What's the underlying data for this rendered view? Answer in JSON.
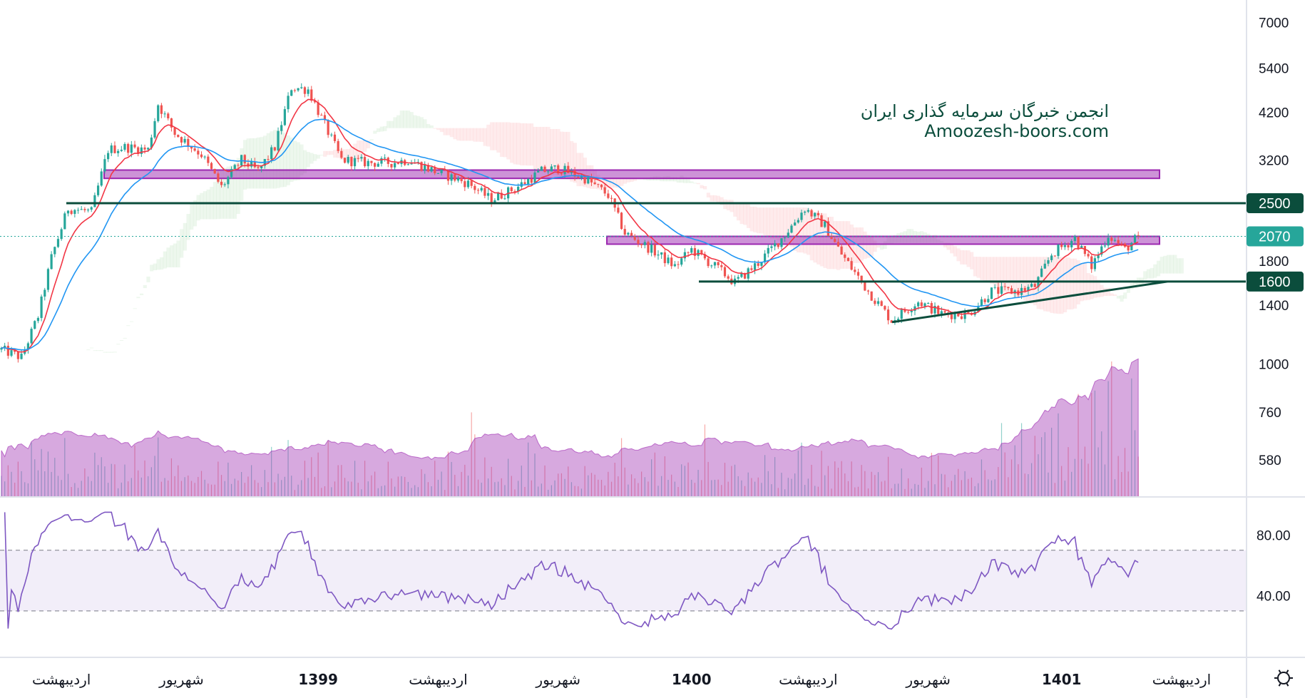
{
  "watermark": {
    "line1": "انجمن خبرگان سرمایه گذاری ایران",
    "line2": "Amoozesh-boors.com"
  },
  "colors": {
    "up": "#26a69a",
    "down": "#ef5350",
    "ema_fast": "#f23645",
    "ema_slow": "#2196f3",
    "zone": "#9c27b0",
    "level_line": "#0b4d3c",
    "last_price": "#26a69a",
    "rsi": "#7e57c2",
    "volume_ma": "#9c27b0"
  },
  "chart_data": {
    "type": "candlestick",
    "price_scale": "log",
    "ylim": [
      500,
      7500
    ],
    "price_ticks": [
      "7000",
      "5400",
      "4200",
      "3200",
      "1800",
      "1400",
      "1000",
      "760",
      "580"
    ],
    "price_tick_values": [
      7000,
      5400,
      4200,
      3200,
      1800,
      1400,
      1000,
      760,
      580
    ],
    "close_path": [
      [
        0,
        1086
      ],
      [
        6,
        1038
      ],
      [
        11,
        1315
      ],
      [
        15,
        1832
      ],
      [
        20,
        2432
      ],
      [
        27,
        2380
      ],
      [
        32,
        3390
      ],
      [
        37,
        3440
      ],
      [
        44,
        3390
      ],
      [
        47,
        4400
      ],
      [
        52,
        3726
      ],
      [
        60,
        3300
      ],
      [
        66,
        2740
      ],
      [
        72,
        3200
      ],
      [
        77,
        3000
      ],
      [
        82,
        3440
      ],
      [
        87,
        4840
      ],
      [
        92,
        4780
      ],
      [
        97,
        3900
      ],
      [
        102,
        3200
      ],
      [
        110,
        3150
      ],
      [
        117,
        3150
      ],
      [
        122,
        3200
      ],
      [
        130,
        3000
      ],
      [
        140,
        2800
      ],
      [
        147,
        2550
      ],
      [
        155,
        2750
      ],
      [
        162,
        3000
      ],
      [
        167,
        3050
      ],
      [
        175,
        2880
      ],
      [
        182,
        2620
      ],
      [
        187,
        2110
      ],
      [
        195,
        1920
      ],
      [
        202,
        1745
      ],
      [
        207,
        1920
      ],
      [
        215,
        1720
      ],
      [
        220,
        1590
      ],
      [
        227,
        1780
      ],
      [
        235,
        2090
      ],
      [
        241,
        2430
      ],
      [
        247,
        2200
      ],
      [
        252,
        1870
      ],
      [
        260,
        1515
      ],
      [
        267,
        1283
      ],
      [
        275,
        1430
      ],
      [
        282,
        1330
      ],
      [
        290,
        1330
      ],
      [
        297,
        1515
      ],
      [
        305,
        1515
      ],
      [
        310,
        1560
      ],
      [
        315,
        1870
      ],
      [
        322,
        2050
      ],
      [
        327,
        1745
      ],
      [
        332,
        2090
      ],
      [
        337,
        1920
      ],
      [
        341,
        2070
      ]
    ],
    "levels": [
      {
        "label": "2500",
        "price": 2500
      },
      {
        "label": "1600",
        "price": 1600
      }
    ],
    "last_price": {
      "label": "2070",
      "price": 2070
    },
    "zones": [
      {
        "low": 2880,
        "high": 3020
      },
      {
        "low": 1980,
        "high": 2070
      }
    ],
    "trendline": {
      "from_price": 1270,
      "to_price": 1600
    },
    "time_labels": [
      "اردیبهشت",
      "شهریور",
      "1399",
      "اردیبهشت",
      "شهریور",
      "1400",
      "اردیبهشت",
      "شهریور",
      "1401",
      "اردیبهشت"
    ],
    "time_label_bars": [
      18,
      54,
      95,
      131,
      167,
      207,
      242,
      278,
      318,
      354
    ],
    "indicators": [
      "EMA fast",
      "EMA slow",
      "Ichimoku cloud",
      "Volume",
      "Volume MA",
      "RSI"
    ],
    "rsi": {
      "ticks": [
        "80.00",
        "40.00"
      ],
      "tick_values": [
        80,
        40
      ],
      "band": [
        30,
        70
      ],
      "period": 14
    }
  }
}
